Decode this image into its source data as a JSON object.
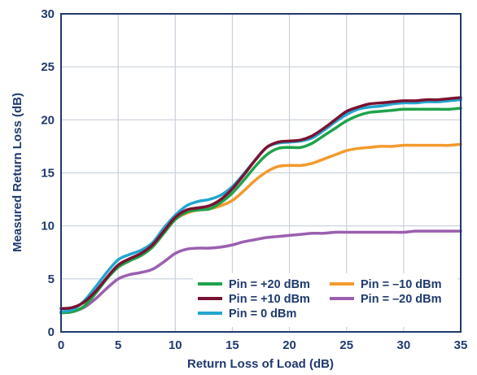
{
  "chart_data": {
    "type": "line",
    "xlabel": "Return Loss of Load (dB)",
    "ylabel": "Measured Return Loss (dB)",
    "xlim": [
      0,
      35
    ],
    "ylim": [
      0,
      30
    ],
    "xticks": [
      "0",
      "5",
      "10",
      "15",
      "20",
      "25",
      "30",
      "35"
    ],
    "yticks": [
      "0",
      "5",
      "10",
      "15",
      "20",
      "25",
      "30"
    ],
    "grid": true,
    "legend_position": "bottom-right",
    "x": [
      0,
      1,
      2,
      3,
      4,
      5,
      6,
      7,
      8,
      9,
      10,
      11,
      12,
      13,
      14,
      15,
      16,
      17,
      18,
      19,
      20,
      21,
      22,
      23,
      24,
      25,
      26,
      27,
      28,
      29,
      30,
      31,
      32,
      33,
      34,
      35
    ],
    "series": [
      {
        "name": "Pin = +20 dBm",
        "color": "#1fa34a",
        "values": [
          1.8,
          1.9,
          2.4,
          3.6,
          5.0,
          6.1,
          6.7,
          7.2,
          8.0,
          9.3,
          10.6,
          11.3,
          11.5,
          11.6,
          12.2,
          13.1,
          14.3,
          15.6,
          16.7,
          17.3,
          17.4,
          17.4,
          17.8,
          18.5,
          19.2,
          19.9,
          20.4,
          20.7,
          20.8,
          20.9,
          21.0,
          21.0,
          21.0,
          21.0,
          21.0,
          21.1
        ]
      },
      {
        "name": "Pin = +10 dBm",
        "color": "#7a1231",
        "values": [
          2.2,
          2.3,
          2.8,
          3.8,
          5.1,
          6.3,
          6.9,
          7.4,
          8.2,
          9.5,
          10.8,
          11.5,
          11.7,
          11.9,
          12.5,
          13.5,
          14.8,
          16.2,
          17.4,
          17.9,
          18.0,
          18.1,
          18.5,
          19.2,
          20.0,
          20.8,
          21.2,
          21.5,
          21.6,
          21.7,
          21.8,
          21.8,
          21.9,
          21.9,
          22.0,
          22.1
        ]
      },
      {
        "name": "Pin = 0 dBm",
        "color": "#22a6cf",
        "values": [
          1.9,
          2.1,
          2.9,
          4.2,
          5.6,
          6.8,
          7.3,
          7.7,
          8.4,
          9.8,
          11.0,
          11.9,
          12.3,
          12.5,
          12.9,
          13.7,
          14.9,
          16.2,
          17.4,
          17.8,
          17.9,
          18.0,
          18.3,
          19.0,
          19.8,
          20.5,
          21.0,
          21.2,
          21.3,
          21.5,
          21.6,
          21.6,
          21.7,
          21.7,
          21.8,
          21.9
        ]
      },
      {
        "name": "Pin = –10 dBm",
        "color": "#f39a2d",
        "values": [
          1.8,
          1.9,
          2.4,
          3.6,
          5.0,
          6.1,
          6.7,
          7.2,
          8.0,
          9.3,
          10.6,
          11.2,
          11.5,
          11.6,
          11.9,
          12.4,
          13.3,
          14.3,
          15.1,
          15.6,
          15.7,
          15.7,
          15.9,
          16.3,
          16.7,
          17.1,
          17.3,
          17.4,
          17.5,
          17.5,
          17.6,
          17.6,
          17.6,
          17.6,
          17.6,
          17.7
        ]
      },
      {
        "name": "Pin = –20 dBm",
        "color": "#9b5fb0",
        "values": [
          1.8,
          1.9,
          2.3,
          3.1,
          4.1,
          5.0,
          5.4,
          5.6,
          5.9,
          6.6,
          7.4,
          7.8,
          7.9,
          7.9,
          8.0,
          8.2,
          8.5,
          8.7,
          8.9,
          9.0,
          9.1,
          9.2,
          9.3,
          9.3,
          9.4,
          9.4,
          9.4,
          9.4,
          9.4,
          9.4,
          9.4,
          9.5,
          9.5,
          9.5,
          9.5,
          9.5
        ]
      }
    ]
  }
}
